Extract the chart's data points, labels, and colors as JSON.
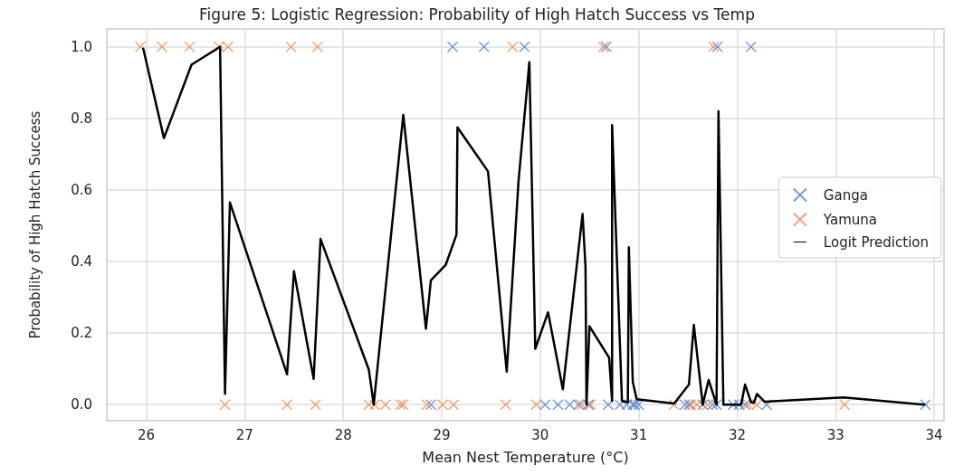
{
  "chart_data": {
    "type": "scatter",
    "title": "Figure 5: Logistic Regression: Probability of High Hatch Success vs Temp",
    "xlabel": "Mean Nest Temperature (°C)",
    "ylabel": "Probability of High Hatch Success",
    "xlim": [
      25.6,
      34.1
    ],
    "xticks": [
      26,
      27,
      28,
      29,
      30,
      31,
      32,
      33,
      34
    ],
    "ylim": [
      -0.045,
      1.05
    ],
    "yticks": [
      {
        "value": 0,
        "label": "0.0"
      },
      0.2,
      0.4,
      0.6,
      0.8,
      {
        "value": 1,
        "label": "1.0"
      }
    ],
    "grid": true,
    "legend": "right",
    "marker": "cross",
    "series": [
      {
        "name": "Ganga",
        "color": "#4878d0",
        "x": [
          29.11,
          29.43,
          29.84,
          30.67,
          31.8,
          32.14,
          28.89,
          30.05,
          30.18,
          30.3,
          30.39,
          30.49,
          30.69,
          30.81,
          30.88,
          30.94,
          31.0,
          30.96,
          31.47,
          31.51,
          31.65,
          31.75,
          31.79,
          31.96,
          32.02,
          32.08,
          32.3,
          33.91
        ],
        "values": [
          1,
          1,
          1,
          1,
          1,
          1,
          0,
          0,
          0,
          0,
          0,
          0,
          0,
          0,
          0,
          0,
          0,
          0,
          0,
          0,
          0,
          0,
          0,
          0,
          0,
          0,
          0,
          0
        ]
      },
      {
        "name": "Yamuna",
        "color": "#ee854a",
        "x": [
          25.94,
          26.16,
          26.44,
          26.74,
          26.83,
          27.47,
          27.74,
          29.72,
          30.64,
          31.76,
          26.8,
          27.43,
          27.72,
          28.26,
          28.32,
          28.43,
          28.58,
          28.61,
          28.85,
          29.01,
          29.12,
          29.65,
          29.96,
          30.42,
          30.51,
          31.36,
          31.53,
          31.59,
          31.7,
          32.11,
          32.2,
          33.09
        ],
        "values": [
          1,
          1,
          1,
          1,
          1,
          1,
          1,
          1,
          1,
          1,
          0,
          0,
          0,
          0,
          0,
          0,
          0,
          0,
          0,
          0,
          0,
          0,
          0,
          0,
          0,
          0,
          0,
          0,
          0,
          0,
          0,
          0
        ]
      },
      {
        "name": "Logit Prediction",
        "type": "line",
        "color": "#000000",
        "marker": "none",
        "line_style": "solid",
        "x": [
          25.97,
          26.18,
          26.46,
          26.75,
          26.8,
          26.85,
          27.43,
          27.5,
          27.7,
          27.77,
          28.26,
          28.31,
          28.61,
          28.84,
          28.89,
          29.04,
          29.15,
          29.16,
          29.47,
          29.66,
          29.78,
          29.89,
          29.95,
          30.08,
          30.23,
          30.43,
          30.46,
          30.47,
          30.5,
          30.7,
          30.73,
          30.73,
          30.83,
          30.89,
          30.9,
          30.94,
          30.98,
          31.36,
          31.51,
          31.56,
          31.65,
          31.71,
          31.79,
          31.81,
          31.86,
          32.04,
          32.08,
          32.14,
          32.17,
          32.2,
          32.28,
          33.08,
          33.9
        ],
        "values": [
          0.995,
          0.745,
          0.95,
          1.0,
          0.03,
          0.565,
          0.085,
          0.373,
          0.072,
          0.463,
          0.098,
          0.0,
          0.81,
          0.212,
          0.347,
          0.39,
          0.475,
          0.775,
          0.652,
          0.092,
          0.625,
          0.957,
          0.156,
          0.258,
          0.043,
          0.533,
          0.385,
          0.0,
          0.219,
          0.131,
          0.01,
          0.781,
          0.01,
          0.007,
          0.44,
          0.063,
          0.015,
          0.003,
          0.056,
          0.223,
          0.0,
          0.069,
          0.0,
          0.82,
          0.0,
          0.0,
          0.056,
          0.007,
          0.005,
          0.03,
          0.008,
          0.02,
          0.0
        ]
      }
    ]
  }
}
